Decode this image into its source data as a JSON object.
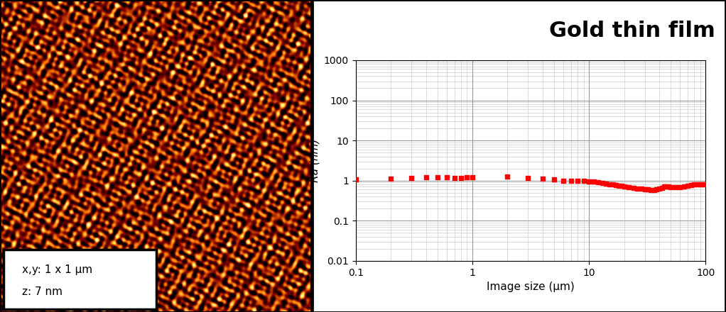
{
  "chart_data": {
    "type": "scatter",
    "title": "Gold thin film",
    "x_label": "Image size (µm)",
    "y_label": "Ra (nm)",
    "x": [
      0.1,
      0.2,
      0.3,
      0.4,
      0.5,
      0.6,
      0.7,
      0.8,
      0.9,
      1,
      2,
      3,
      4,
      5,
      6,
      7,
      8,
      9,
      10,
      11,
      12,
      13,
      14,
      15,
      16,
      17,
      18,
      19,
      20,
      22,
      24,
      26,
      28,
      30,
      32,
      34,
      36,
      38,
      40,
      42,
      44,
      46,
      48,
      50,
      55,
      60,
      65,
      70,
      75,
      80,
      85,
      90,
      95,
      100
    ],
    "values": [
      1.05,
      1.1,
      1.15,
      1.2,
      1.2,
      1.2,
      1.18,
      1.18,
      1.2,
      1.2,
      1.25,
      1.15,
      1.1,
      1.05,
      1.0,
      1.0,
      0.98,
      0.97,
      0.95,
      0.93,
      0.9,
      0.88,
      0.85,
      0.82,
      0.8,
      0.78,
      0.75,
      0.73,
      0.7,
      0.68,
      0.66,
      0.64,
      0.62,
      0.6,
      0.6,
      0.58,
      0.58,
      0.6,
      0.62,
      0.65,
      0.7,
      0.7,
      0.7,
      0.68,
      0.68,
      0.68,
      0.7,
      0.75,
      0.78,
      0.8,
      0.8,
      0.8,
      0.82,
      0.82
    ],
    "color": "#ff0000",
    "marker": "square",
    "log": true,
    "grid": true,
    "xlim": [
      0.1,
      100
    ],
    "ylim": [
      0.01,
      1000
    ],
    "xticks": [
      0.1,
      1,
      10,
      100
    ],
    "yticks": [
      0.01,
      0.1,
      1,
      10,
      100,
      1000
    ]
  },
  "image_panel": {
    "annotations": [
      "x,y: 1 x 1 µm",
      "z: 7 nm"
    ]
  }
}
